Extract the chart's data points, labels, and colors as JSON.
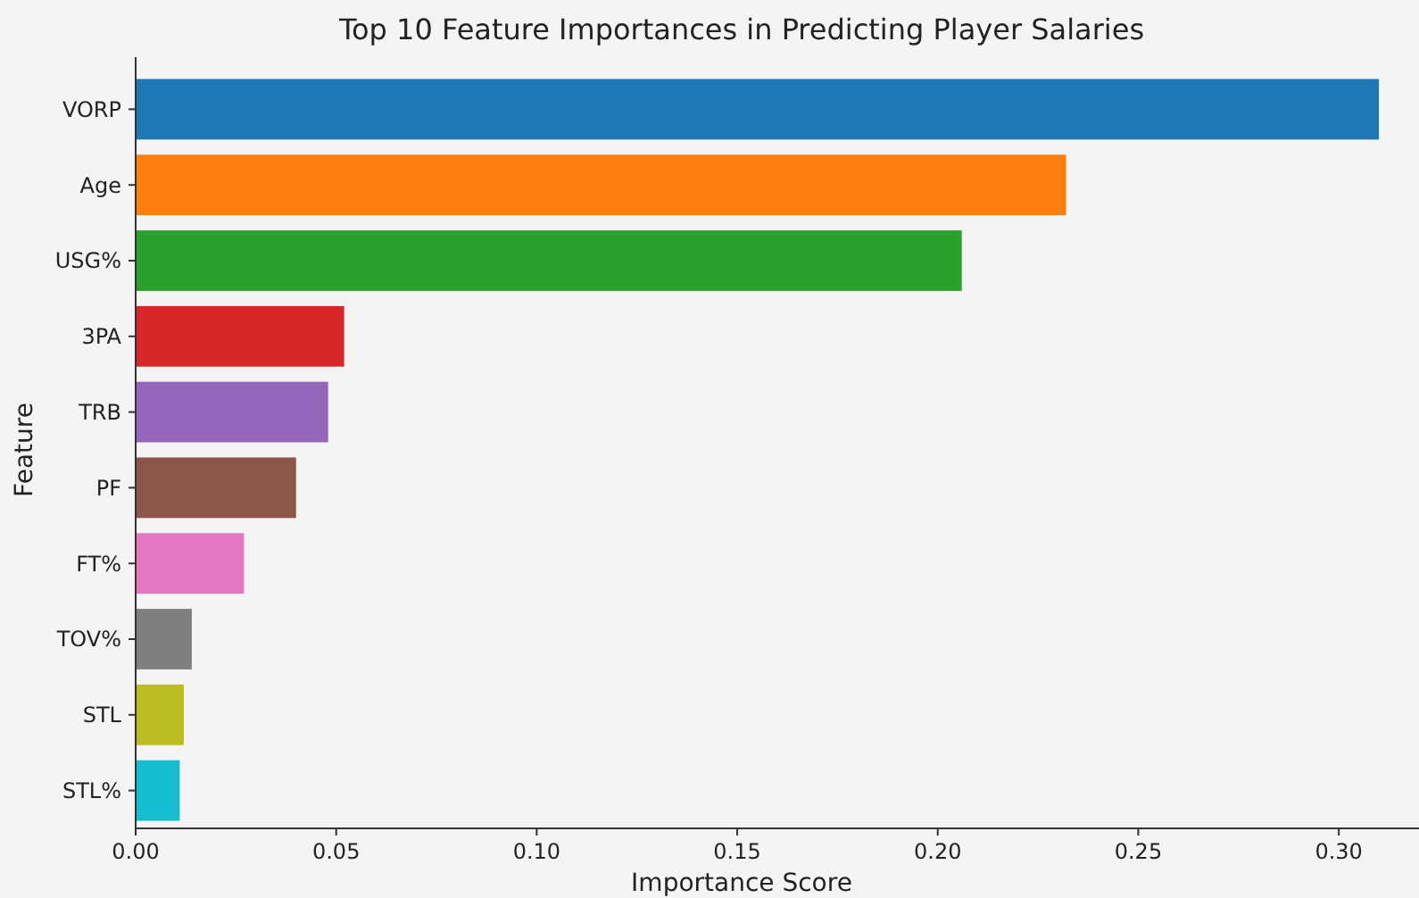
{
  "chart_data": {
    "type": "bar",
    "orientation": "horizontal",
    "title": "Top 10 Feature Importances in Predicting Player Salaries",
    "xlabel": "Importance Score",
    "ylabel": "Feature",
    "categories": [
      "VORP",
      "Age",
      "USG%",
      "3PA",
      "TRB",
      "PF",
      "FT%",
      "TOV%",
      "STL",
      "STL%"
    ],
    "values": [
      0.31,
      0.232,
      0.206,
      0.052,
      0.048,
      0.04,
      0.027,
      0.014,
      0.012,
      0.011
    ],
    "colors": [
      "#1f77b4",
      "#ff7f0e",
      "#2ca02c",
      "#d62728",
      "#9467bd",
      "#8c564b",
      "#e377c2",
      "#7f7f7f",
      "#bcbd22",
      "#17becf"
    ],
    "xlim": [
      0,
      0.32
    ],
    "xticks": [
      {
        "value": 0,
        "label": "0.00"
      },
      {
        "value": 0.05,
        "label": "0.05"
      },
      {
        "value": 0.1,
        "label": "0.10"
      },
      {
        "value": 0.15,
        "label": "0.15"
      },
      {
        "value": 0.2,
        "label": "0.20"
      },
      {
        "value": 0.25,
        "label": "0.25"
      },
      {
        "value": 0.3,
        "label": "0.30"
      }
    ],
    "grid": false
  }
}
